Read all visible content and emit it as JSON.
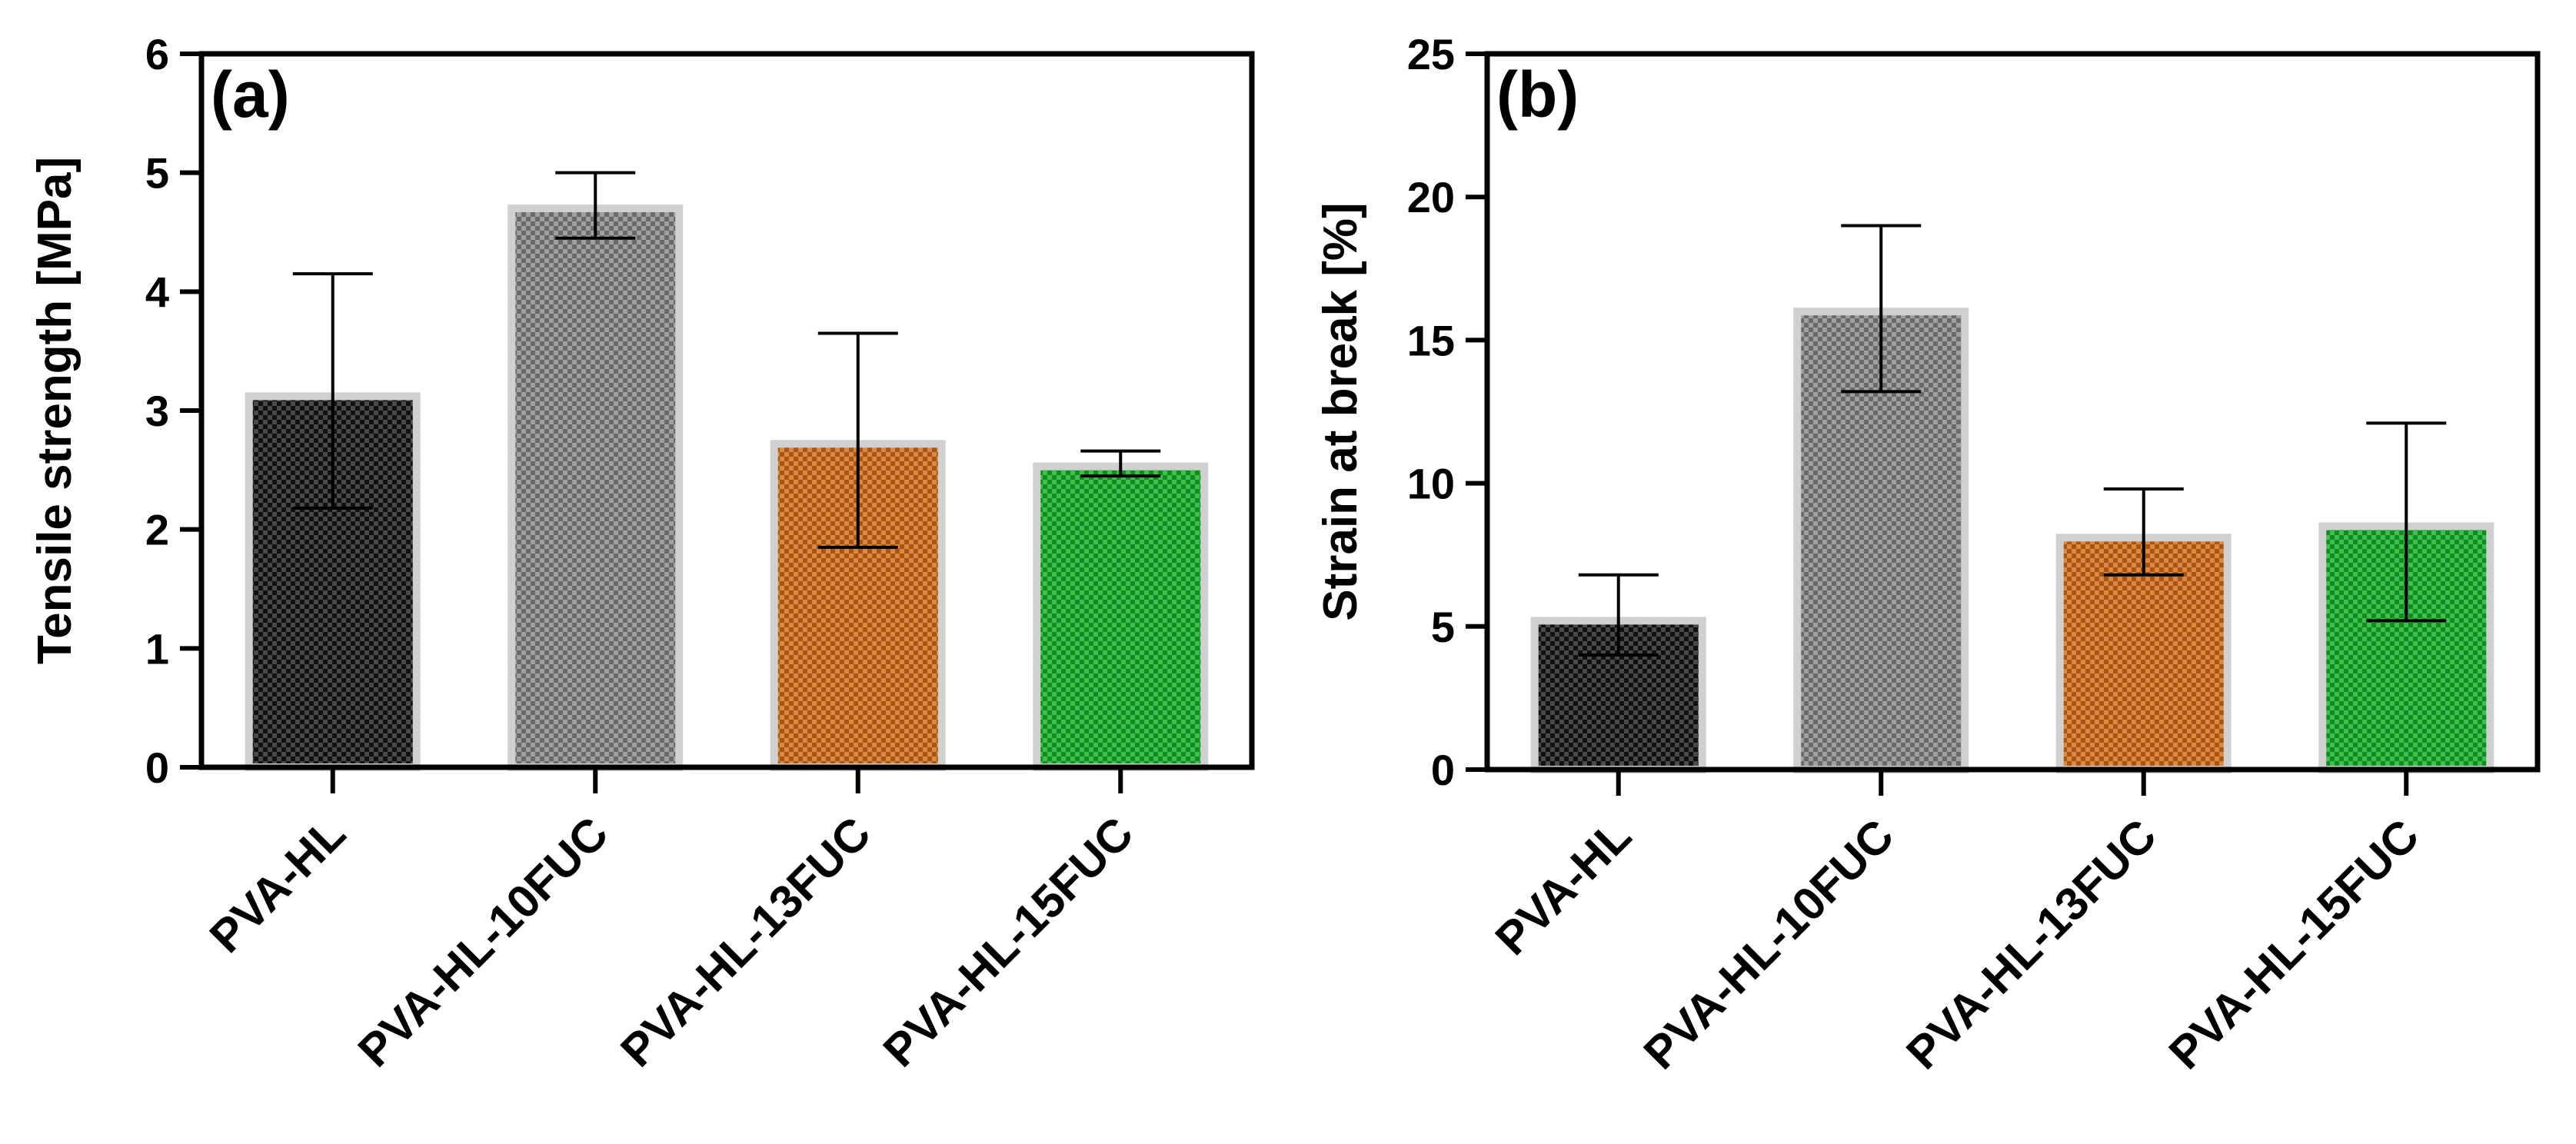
{
  "chart_data": [
    {
      "type": "bar",
      "panel_label": "(a)",
      "title": "",
      "xlabel": "",
      "ylabel": "Tensile strength [MPa]",
      "categories": [
        "PVA-HL",
        "PVA-HL-10FUC",
        "PVA-HL-13FUC",
        "PVA-HL-15FUC"
      ],
      "values": [
        3.12,
        4.7,
        2.72,
        2.53
      ],
      "error_low": [
        2.18,
        4.45,
        1.85,
        2.45
      ],
      "error_high": [
        4.15,
        5.0,
        3.65,
        2.66
      ],
      "colors": [
        "#1c1c1c",
        "#7a7a7a",
        "#c0661e",
        "#1a9a2a"
      ],
      "ylim": [
        0,
        6
      ],
      "yticks": [
        "0",
        "1",
        "2",
        "3",
        "4",
        "5",
        "6"
      ],
      "grid": false
    },
    {
      "type": "bar",
      "panel_label": "(b)",
      "title": "",
      "xlabel": "",
      "ylabel": "Strain at break [%]",
      "categories": [
        "PVA-HL",
        "PVA-HL-10FUC",
        "PVA-HL-13FUC",
        "PVA-HL-15FUC"
      ],
      "values": [
        5.2,
        16.0,
        8.1,
        8.5
      ],
      "error_low": [
        4.0,
        13.2,
        6.8,
        5.2
      ],
      "error_high": [
        6.8,
        19.0,
        9.8,
        12.1
      ],
      "colors": [
        "#1c1c1c",
        "#7a7a7a",
        "#c0661e",
        "#1a9a2a"
      ],
      "ylim": [
        0,
        25
      ],
      "yticks": [
        "0",
        "5",
        "10",
        "15",
        "20",
        "25"
      ],
      "grid": false
    }
  ]
}
